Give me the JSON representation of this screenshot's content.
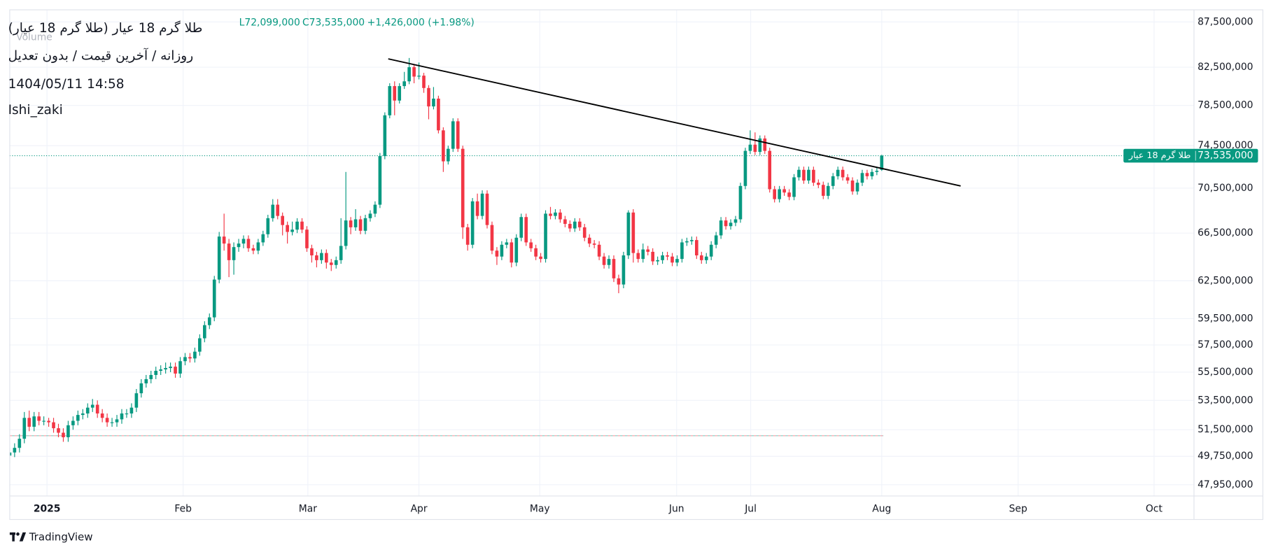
{
  "chart_data": {
    "type": "candlestick",
    "title": "طلا گرم 18 عیار (طلا گرم 18 عیار)",
    "subtitle": "روزانه / آخرین قیمت / بدون تعدیل",
    "timestamp": "1404/05/11 14:58",
    "author": "Ishi_zaki",
    "legend_values": [
      "L72,099,000",
      "C73,535,000",
      "+1,426,000 (+1.98%)"
    ],
    "volume_label": "Volume",
    "last_price_symbol": "طلا گرم 18 عیار",
    "last_price_label": "73,535,000",
    "watermark": "TradingView",
    "up_color": "#089981",
    "down_color": "#f23645",
    "log_scale": true,
    "grid": true,
    "xlim": [
      0,
      243.1
    ],
    "xticks": [
      {
        "value": 7.65,
        "label": "2025"
      },
      {
        "value": 35.6,
        "label": "Feb"
      },
      {
        "value": 61.2,
        "label": "Mar"
      },
      {
        "value": 84.0,
        "label": "Apr"
      },
      {
        "value": 108.8,
        "label": "May"
      },
      {
        "value": 136.9,
        "label": "Jun"
      },
      {
        "value": 152.1,
        "label": "Jul"
      },
      {
        "value": 179.0,
        "label": "Aug"
      },
      {
        "value": 207.0,
        "label": "Sep"
      },
      {
        "value": 234.9,
        "label": "Oct"
      }
    ],
    "ylim": [
      47250000,
      88890000
    ],
    "yticks": [
      {
        "value": 87500000,
        "label": "87,500,000"
      },
      {
        "value": 82500000,
        "label": "82,500,000"
      },
      {
        "value": 78500000,
        "label": "78,500,000"
      },
      {
        "value": 74500000,
        "label": "74,500,000"
      },
      {
        "value": 70500000,
        "label": "70,500,000"
      },
      {
        "value": 66500000,
        "label": "66,500,000"
      },
      {
        "value": 62500000,
        "label": "62,500,000"
      },
      {
        "value": 59500000,
        "label": "59,500,000"
      },
      {
        "value": 57500000,
        "label": "57,500,000"
      },
      {
        "value": 55500000,
        "label": "55,500,000"
      },
      {
        "value": 53500000,
        "label": "53,500,000"
      },
      {
        "value": 51500000,
        "label": "51,500,000"
      },
      {
        "value": 49750000,
        "label": "49,750,000"
      },
      {
        "value": 47950000,
        "label": "47,950,000"
      }
    ],
    "trendline": {
      "x": [
        77.7,
        195.2
      ],
      "values": [
        83400000,
        70700000
      ]
    },
    "reference_line": 51100000,
    "open": [
      49800000,
      50000000,
      50300000,
      50900000,
      52300000,
      51700000,
      52400000,
      52100000,
      52100000,
      52000000,
      51600000,
      51300000,
      51000000,
      51800000,
      52100000,
      52500000,
      52600000,
      53000000,
      53200000,
      52600000,
      52300000,
      52000000,
      52000000,
      52200000,
      52600000,
      52600000,
      53000000,
      54000000,
      54700000,
      55000000,
      55300000,
      55600000,
      55700000,
      55800000,
      55900000,
      55400000,
      56300000,
      56600000,
      56500000,
      57000000,
      58000000,
      59000000,
      59600000,
      62600000,
      66200000,
      65600000,
      64200000,
      65300000,
      65600000,
      66000000,
      65200000,
      65000000,
      65700000,
      66400000,
      67800000,
      69000000,
      68000000,
      67200000,
      66600000,
      66800000,
      67500000,
      66800000,
      65200000,
      64600000,
      64200000,
      64800000,
      64000000,
      63800000,
      64200000,
      65400000,
      67600000,
      67000000,
      67700000,
      66700000,
      67800000,
      68200000,
      69000000,
      73500000,
      77500000,
      80500000,
      79000000,
      80500000,
      81000000,
      82500000,
      81500000,
      81600000,
      80300000,
      78400000,
      79200000,
      76000000,
      73000000,
      74200000,
      76900000,
      74200000,
      67000000,
      65500000,
      69300000,
      68000000,
      70000000,
      67200000,
      65000000,
      64500000,
      65500000,
      65700000,
      64000000,
      66100000,
      67900000,
      65700000,
      65200000,
      64500000,
      64300000,
      68200000,
      68000000,
      68300000,
      67700000,
      67300000,
      66900000,
      67500000,
      67000000,
      66100000,
      65600000,
      65500000,
      64500000,
      63800000,
      64300000,
      62700000,
      62200000,
      64600000,
      68300000,
      64800000,
      64300000,
      65100000,
      64900000,
      64100000,
      64200000,
      64600000,
      64500000,
      64000000,
      64300000,
      65700000,
      65800000,
      65900000,
      64600000,
      64200000,
      64500000,
      65500000,
      66300000,
      67600000,
      67100000,
      67400000,
      67700000,
      70700000,
      74000000,
      74600000,
      73900000,
      75200000,
      74000000,
      70400000,
      69500000,
      70400000,
      70100000,
      69700000,
      71500000,
      72200000,
      71200000,
      72200000,
      71000000,
      70800000,
      69800000,
      70700000,
      71600000,
      72200000,
      71500000,
      71200000,
      70200000,
      71000000,
      71900000,
      71600000,
      72000000,
      72200000
    ],
    "high": [
      50300000,
      50600000,
      51200000,
      52700000,
      52800000,
      52700000,
      52700000,
      52400000,
      52300000,
      52300000,
      51900000,
      51600000,
      52100000,
      52400000,
      52800000,
      52900000,
      53300000,
      53600000,
      53500000,
      52900000,
      52600000,
      52300000,
      52500000,
      52900000,
      52900000,
      53300000,
      54300000,
      55000000,
      55300000,
      55600000,
      55900000,
      56000000,
      56200000,
      56200000,
      56200000,
      56600000,
      56900000,
      56900000,
      57300000,
      58300000,
      59300000,
      59900000,
      62900000,
      66600000,
      68200000,
      66000000,
      65700000,
      66000000,
      66300000,
      66300000,
      65500000,
      66000000,
      66700000,
      68100000,
      69500000,
      69500000,
      68300000,
      67500000,
      67500000,
      67800000,
      67800000,
      67100000,
      65500000,
      64900000,
      65100000,
      65100000,
      64300000,
      64500000,
      67800000,
      72000000,
      67900000,
      68600000,
      68000000,
      68100000,
      68500000,
      69300000,
      73800000,
      77800000,
      80800000,
      81000000,
      80800000,
      82000000,
      83500000,
      82800000,
      83000000,
      81900000,
      80600000,
      80400000,
      79500000,
      76300000,
      74500000,
      77200000,
      77200000,
      74500000,
      67300000,
      69600000,
      70000000,
      70300000,
      70300000,
      67500000,
      65300000,
      65800000,
      66000000,
      66000000,
      66400000,
      68200000,
      68200000,
      66000000,
      65500000,
      64800000,
      68500000,
      68800000,
      68600000,
      68600000,
      68000000,
      67600000,
      67800000,
      67800000,
      67300000,
      66400000,
      65900000,
      65800000,
      64800000,
      64600000,
      64600000,
      63000000,
      64900000,
      68500000,
      68600000,
      65100000,
      65600000,
      65400000,
      65200000,
      64500000,
      64900000,
      64900000,
      64800000,
      64600000,
      66000000,
      66100000,
      66200000,
      66200000,
      64900000,
      64800000,
      65800000,
      66600000,
      67900000,
      67900000,
      67700000,
      68000000,
      71000000,
      74300000,
      76000000,
      75800000,
      75500000,
      75500000,
      74300000,
      70700000,
      70700000,
      70700000,
      70400000,
      71800000,
      72500000,
      72500000,
      72500000,
      72500000,
      71300000,
      71100000,
      71000000,
      71900000,
      72500000,
      72500000,
      71800000,
      71500000,
      71300000,
      72200000,
      72200000,
      72300000,
      72400000,
      73625000
    ],
    "low": [
      49300000,
      49700000,
      50000000,
      50600000,
      51400000,
      51400000,
      51800000,
      51800000,
      51700000,
      51300000,
      51000000,
      50700000,
      50700000,
      51500000,
      51800000,
      52200000,
      52300000,
      52700000,
      52300000,
      52000000,
      51700000,
      51700000,
      51700000,
      51900000,
      52300000,
      52300000,
      52700000,
      53700000,
      54400000,
      54700000,
      55000000,
      55300000,
      55400000,
      55500000,
      55100000,
      55100000,
      56000000,
      56200000,
      56200000,
      56700000,
      57700000,
      58700000,
      59300000,
      62300000,
      65000000,
      62800000,
      63000000,
      64900000,
      65200000,
      64900000,
      64700000,
      64700000,
      65400000,
      66100000,
      67500000,
      67700000,
      66300000,
      65600000,
      66300000,
      66500000,
      66500000,
      64900000,
      64000000,
      63600000,
      63900000,
      63500000,
      63300000,
      63500000,
      63900000,
      65100000,
      66400000,
      66700000,
      66400000,
      66400000,
      67500000,
      67900000,
      68700000,
      73200000,
      77200000,
      77500000,
      78700000,
      80200000,
      80700000,
      80800000,
      81200000,
      79800000,
      77100000,
      78100000,
      75700000,
      72000000,
      72700000,
      73900000,
      73900000,
      66000000,
      65000000,
      65200000,
      67700000,
      67700000,
      66900000,
      64700000,
      63800000,
      64200000,
      65200000,
      63600000,
      63700000,
      65800000,
      65400000,
      64900000,
      64200000,
      64000000,
      64000000,
      67700000,
      67700000,
      67400000,
      67000000,
      66600000,
      66600000,
      66700000,
      65800000,
      65300000,
      65200000,
      64200000,
      63500000,
      63500000,
      62400000,
      61500000,
      61900000,
      64300000,
      64000000,
      64000000,
      64000000,
      64600000,
      63800000,
      63800000,
      63900000,
      64200000,
      63700000,
      63700000,
      64000000,
      65400000,
      65500000,
      64300000,
      63900000,
      63900000,
      64200000,
      65200000,
      66000000,
      66800000,
      66800000,
      67100000,
      67400000,
      70400000,
      73700000,
      73600000,
      73600000,
      73700000,
      70100000,
      69200000,
      69200000,
      69800000,
      69400000,
      69400000,
      71200000,
      70900000,
      70900000,
      70700000,
      70500000,
      69500000,
      69500000,
      70400000,
      71300000,
      71200000,
      70900000,
      69900000,
      69900000,
      70700000,
      71300000,
      71300000,
      71700000,
      72099000
    ],
    "close": [
      50000000,
      50300000,
      50900000,
      52300000,
      51700000,
      52400000,
      52100000,
      52100000,
      52000000,
      51600000,
      51300000,
      51000000,
      51800000,
      52100000,
      52500000,
      52600000,
      53000000,
      53200000,
      52600000,
      52300000,
      52000000,
      52000000,
      52200000,
      52600000,
      52600000,
      53000000,
      54000000,
      54700000,
      55000000,
      55300000,
      55600000,
      55700000,
      55800000,
      55900000,
      55400000,
      56300000,
      56600000,
      56500000,
      57000000,
      58000000,
      59000000,
      59600000,
      62600000,
      66200000,
      65600000,
      64200000,
      65300000,
      65600000,
      66000000,
      65200000,
      65000000,
      65700000,
      66400000,
      67800000,
      69000000,
      68000000,
      67200000,
      66600000,
      66800000,
      67500000,
      66800000,
      65200000,
      64600000,
      64200000,
      64800000,
      64000000,
      63800000,
      64200000,
      65400000,
      67600000,
      67000000,
      67700000,
      66700000,
      67800000,
      68200000,
      69000000,
      73500000,
      77500000,
      80500000,
      79000000,
      80500000,
      81000000,
      82500000,
      81500000,
      81600000,
      80300000,
      78400000,
      79200000,
      76000000,
      73000000,
      74200000,
      76900000,
      74200000,
      67000000,
      65500000,
      69300000,
      68000000,
      70000000,
      67200000,
      65000000,
      64500000,
      65500000,
      65700000,
      64000000,
      66100000,
      67900000,
      65700000,
      65200000,
      64500000,
      64300000,
      68200000,
      68000000,
      68300000,
      67700000,
      67300000,
      66900000,
      67500000,
      67000000,
      66100000,
      65600000,
      65500000,
      64500000,
      63800000,
      64300000,
      62700000,
      62200000,
      64600000,
      68300000,
      64800000,
      64300000,
      65100000,
      64900000,
      64100000,
      64200000,
      64600000,
      64500000,
      64000000,
      64300000,
      65700000,
      65800000,
      65900000,
      64600000,
      64200000,
      64500000,
      65500000,
      66300000,
      67600000,
      67100000,
      67400000,
      67700000,
      70700000,
      74000000,
      74600000,
      73900000,
      75200000,
      74000000,
      70400000,
      69500000,
      70400000,
      70100000,
      69700000,
      71500000,
      72200000,
      71200000,
      72200000,
      71000000,
      70800000,
      69800000,
      70700000,
      71600000,
      72200000,
      71500000,
      71200000,
      70200000,
      71000000,
      71900000,
      71600000,
      72000000,
      72109000,
      73535000
    ]
  }
}
